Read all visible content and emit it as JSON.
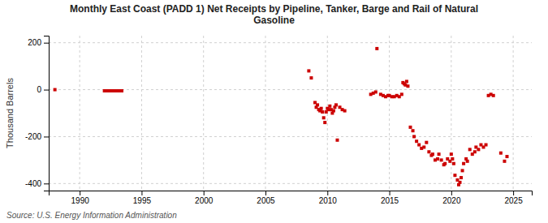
{
  "chart_data": {
    "type": "scatter",
    "title": "Monthly East Coast (PADD 1) Net Receipts by Pipeline, Tanker, Barge and Rail of Natural\nGasoline",
    "ylabel": "Thousand Barrels",
    "annotations": [
      "Source: U.S. Energy Information Administration"
    ],
    "color": "#cc0000",
    "marker": "square",
    "grid": true,
    "xlim": [
      1987.5,
      2026.5
    ],
    "ylim": [
      -430,
      230
    ],
    "xticks": [
      1990,
      1995,
      2000,
      2005,
      2010,
      2015,
      2020,
      2025
    ],
    "yticks": [
      -400,
      -200,
      0,
      200
    ],
    "x": [
      1988.0,
      1992.0,
      1992.2,
      1992.4,
      1992.6,
      1992.8,
      1993.0,
      1993.2,
      1993.4,
      2008.5,
      2008.7,
      2009.0,
      2009.1,
      2009.2,
      2009.3,
      2009.4,
      2009.5,
      2009.6,
      2009.7,
      2009.8,
      2009.9,
      2010.0,
      2010.1,
      2010.2,
      2010.3,
      2010.4,
      2010.5,
      2010.6,
      2010.7,
      2010.8,
      2011.0,
      2011.2,
      2011.4,
      2013.5,
      2013.7,
      2013.9,
      2014.0,
      2014.3,
      2014.5,
      2014.7,
      2014.9,
      2015.0,
      2015.2,
      2015.4,
      2015.6,
      2015.8,
      2016.0,
      2016.1,
      2016.2,
      2016.3,
      2016.4,
      2016.5,
      2016.7,
      2016.9,
      2017.0,
      2017.2,
      2017.4,
      2017.6,
      2017.8,
      2018.0,
      2018.2,
      2018.4,
      2018.5,
      2018.7,
      2018.9,
      2019.0,
      2019.2,
      2019.4,
      2019.5,
      2019.7,
      2019.9,
      2020.0,
      2020.1,
      2020.2,
      2020.3,
      2020.5,
      2020.6,
      2020.7,
      2020.8,
      2020.9,
      2021.0,
      2021.2,
      2021.3,
      2021.5,
      2021.7,
      2021.9,
      2022.0,
      2022.2,
      2022.4,
      2022.6,
      2022.8,
      2023.0,
      2023.2,
      2023.4,
      2024.0,
      2024.3,
      2024.5
    ],
    "values": [
      0,
      -5,
      -5,
      -5,
      -5,
      -5,
      -5,
      -5,
      -5,
      80,
      50,
      -55,
      -75,
      -65,
      -85,
      -90,
      -80,
      -95,
      -120,
      -140,
      -95,
      -80,
      -85,
      -70,
      -85,
      -100,
      -90,
      -75,
      -65,
      -215,
      -75,
      -85,
      -90,
      -20,
      -15,
      -10,
      175,
      -20,
      -25,
      -30,
      -25,
      -25,
      -30,
      -30,
      -25,
      -30,
      -20,
      30,
      25,
      20,
      35,
      15,
      -160,
      -175,
      -200,
      -220,
      -235,
      -250,
      -245,
      -225,
      -265,
      -280,
      -275,
      -300,
      -295,
      -275,
      -300,
      -320,
      -315,
      -295,
      -305,
      -275,
      -295,
      -315,
      -365,
      -385,
      -405,
      -395,
      -375,
      -345,
      -315,
      -295,
      -305,
      -255,
      -275,
      -265,
      -245,
      -255,
      -235,
      -245,
      -235,
      -25,
      -20,
      -25,
      -270,
      -305,
      -285
    ]
  }
}
